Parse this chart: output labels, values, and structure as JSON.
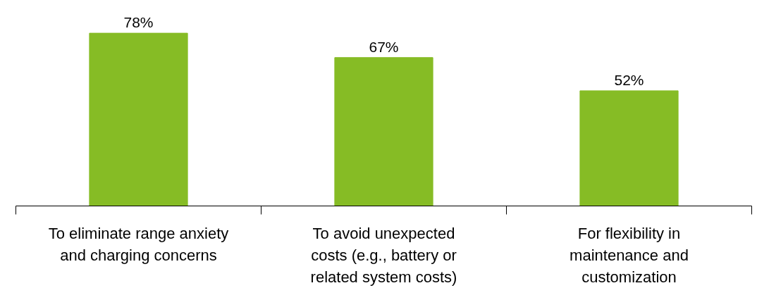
{
  "chart_data": {
    "type": "bar",
    "categories": [
      "To eliminate range anxiety\nand charging concerns",
      "To avoid unexpected\ncosts (e.g., battery or\nrelated system costs)",
      "For flexibility in\nmaintenance and\ncustomization"
    ],
    "values": [
      78,
      67,
      52
    ],
    "value_labels": [
      "78%",
      "67%",
      "52%"
    ],
    "color": "#86bc25",
    "grid": false
  }
}
